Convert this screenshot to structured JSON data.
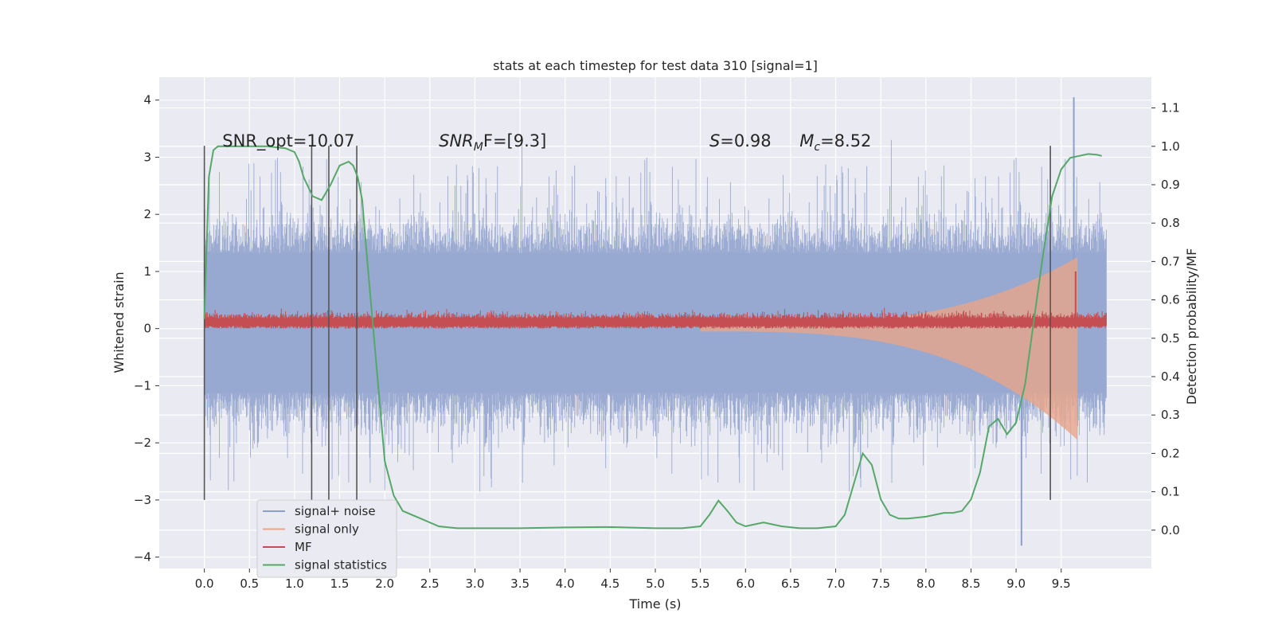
{
  "chart_data": {
    "type": "line",
    "title": "stats at each timestep for test data 310 [signal=1]",
    "xlabel": "Time (s)",
    "ylabel_left": "Whitened strain",
    "ylabel_right": "Detection probability/MF",
    "xlim": [
      -0.5,
      10.5
    ],
    "ylim_left": [
      -4.2,
      4.4
    ],
    "ylim_right": [
      -0.1,
      1.18
    ],
    "xticks": [
      "0.0",
      "0.5",
      "1.0",
      "1.5",
      "2.0",
      "2.5",
      "3.0",
      "3.5",
      "4.0",
      "4.5",
      "5.0",
      "5.5",
      "6.0",
      "6.5",
      "7.0",
      "7.5",
      "8.0",
      "8.5",
      "9.0",
      "9.5"
    ],
    "yticks_left": [
      "4",
      "3",
      "2",
      "1",
      "0",
      "−1",
      "−2",
      "−3",
      "−4"
    ],
    "yticks_right": [
      "1.1",
      "1.0",
      "0.9",
      "0.8",
      "0.7",
      "0.6",
      "0.5",
      "0.4",
      "0.3",
      "0.2",
      "0.1",
      "0.0"
    ],
    "grid": true,
    "legend_position": "lower-left",
    "series": [
      {
        "name": "signal+ noise",
        "color": "#8da0cb",
        "note_range": [
          -3.4,
          4.05
        ]
      },
      {
        "name": "signal only",
        "color": "#e8a58a"
      },
      {
        "name": "MF",
        "color": "#c44e52"
      },
      {
        "name": "signal statistics",
        "color": "#55a868"
      }
    ],
    "signal_statistics": {
      "x": [
        0.0,
        0.05,
        0.1,
        0.15,
        0.2,
        0.3,
        0.5,
        0.7,
        0.9,
        1.0,
        1.05,
        1.1,
        1.2,
        1.3,
        1.4,
        1.5,
        1.6,
        1.65,
        1.7,
        1.75,
        1.8,
        1.9,
        2.0,
        2.1,
        2.2,
        2.4,
        2.6,
        2.8,
        3.0,
        3.5,
        4.0,
        4.5,
        5.0,
        5.3,
        5.5,
        5.6,
        5.7,
        5.8,
        5.9,
        6.0,
        6.2,
        6.4,
        6.6,
        6.8,
        7.0,
        7.1,
        7.2,
        7.3,
        7.4,
        7.5,
        7.6,
        7.7,
        7.8,
        8.0,
        8.2,
        8.3,
        8.4,
        8.5,
        8.6,
        8.7,
        8.8,
        8.9,
        9.0,
        9.1,
        9.2,
        9.3,
        9.4,
        9.5,
        9.6,
        9.7,
        9.8,
        9.9,
        9.95
      ],
      "y": [
        0.55,
        0.92,
        0.99,
        1.0,
        1.0,
        1.0,
        1.0,
        1.0,
        0.995,
        0.985,
        0.96,
        0.92,
        0.87,
        0.86,
        0.9,
        0.95,
        0.96,
        0.95,
        0.92,
        0.86,
        0.72,
        0.45,
        0.18,
        0.09,
        0.05,
        0.03,
        0.01,
        0.005,
        0.005,
        0.005,
        0.007,
        0.008,
        0.005,
        0.005,
        0.01,
        0.04,
        0.077,
        0.05,
        0.02,
        0.01,
        0.02,
        0.01,
        0.005,
        0.005,
        0.01,
        0.04,
        0.12,
        0.2,
        0.17,
        0.08,
        0.04,
        0.03,
        0.03,
        0.035,
        0.045,
        0.045,
        0.05,
        0.08,
        0.15,
        0.27,
        0.29,
        0.25,
        0.28,
        0.38,
        0.55,
        0.72,
        0.87,
        0.94,
        0.97,
        0.975,
        0.98,
        0.978,
        0.975
      ]
    },
    "vlines_x": [
      0.0,
      1.19,
      1.38,
      1.69,
      9.38
    ],
    "vlines_ylim": [
      -3.0,
      3.2
    ],
    "annotations": [
      {
        "x": 0.2,
        "y": 3.3,
        "text": "SNR_opt=10.07"
      },
      {
        "x": 2.6,
        "y": 3.3,
        "text": "SNR",
        "sub": "M",
        "rest": "F=[9.3]",
        "italic": true
      },
      {
        "x": 5.6,
        "y": 3.3,
        "text": "S",
        "rest": "=0.98",
        "italic": true
      },
      {
        "x": 6.6,
        "y": 3.3,
        "text": "M",
        "sub": "c",
        "rest": "=8.52",
        "italic": true
      }
    ]
  }
}
